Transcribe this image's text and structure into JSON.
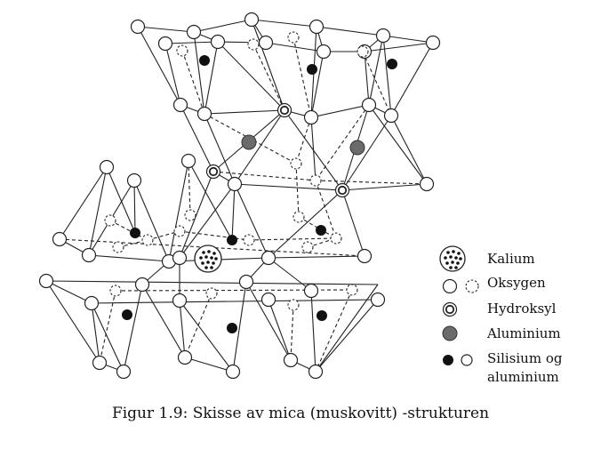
{
  "legend": {
    "kalium": "Kalium",
    "oksygen": "Oksygen",
    "hydroksyl": "Hydroksyl",
    "aluminium": "Aluminium",
    "silisium_line1": "Silisium og",
    "silisium_line2": "aluminium"
  },
  "caption": "Figur 1.9: Skisse av mica (muskovitt) -strukturen",
  "colors": {
    "line": "#222222",
    "aluminium": "#6b6b6b",
    "silicon": "#111111"
  }
}
